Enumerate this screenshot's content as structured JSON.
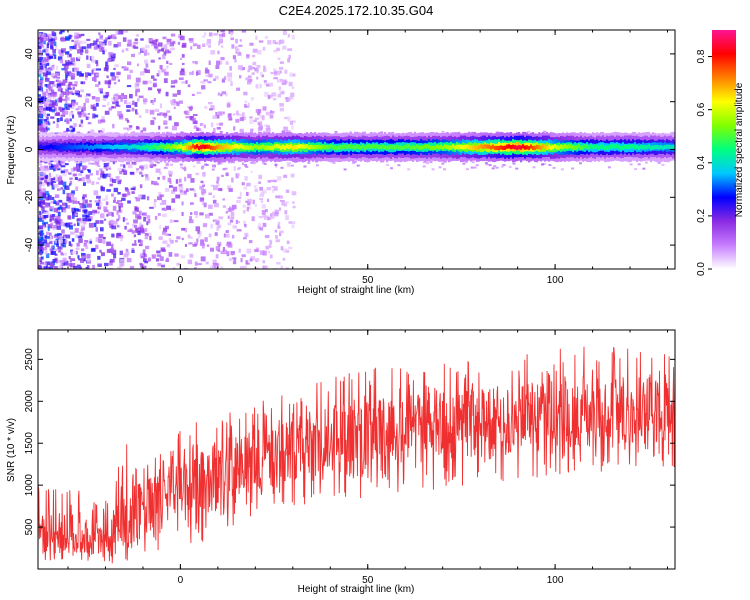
{
  "figure": {
    "title": "C2E4.2025.172.10.35.G04"
  },
  "chart_data": [
    {
      "type": "heatmap",
      "xlabel": "Height of straight line (km)",
      "ylabel": "Frequency (Hz)",
      "xlim": [
        -38,
        132
      ],
      "ylim": [
        -50,
        50
      ],
      "xticks": [
        0,
        50,
        100
      ],
      "yticks": [
        -40,
        -20,
        0,
        20,
        40
      ],
      "colorbar": {
        "label": "Normalized spectral amplitude",
        "range": [
          0,
          0.9
        ],
        "ticks": [
          0.0,
          0.2,
          0.4,
          0.6,
          0.8
        ],
        "colors": [
          "#ffffff",
          "#c77dff",
          "#8a2be2",
          "#0000ff",
          "#00c8ff",
          "#00ff80",
          "#80ff00",
          "#ffff00",
          "#ff8000",
          "#ff0000",
          "#ff1493"
        ]
      },
      "ridge": {
        "center_hz": 1,
        "points": [
          {
            "x": -38,
            "amp": 0.25
          },
          {
            "x": -30,
            "amp": 0.3
          },
          {
            "x": -20,
            "amp": 0.35
          },
          {
            "x": -12,
            "amp": 0.4
          },
          {
            "x": -5,
            "amp": 0.5
          },
          {
            "x": 0,
            "amp": 0.6
          },
          {
            "x": 5,
            "amp": 0.85
          },
          {
            "x": 10,
            "amp": 0.7
          },
          {
            "x": 20,
            "amp": 0.55
          },
          {
            "x": 30,
            "amp": 0.65
          },
          {
            "x": 40,
            "amp": 0.5
          },
          {
            "x": 50,
            "amp": 0.5
          },
          {
            "x": 60,
            "amp": 0.5
          },
          {
            "x": 70,
            "amp": 0.55
          },
          {
            "x": 80,
            "amp": 0.7
          },
          {
            "x": 90,
            "amp": 0.85
          },
          {
            "x": 100,
            "amp": 0.6
          },
          {
            "x": 110,
            "amp": 0.45
          },
          {
            "x": 120,
            "amp": 0.45
          },
          {
            "x": 132,
            "amp": 0.4
          }
        ]
      },
      "scatter_noise_regions": [
        {
          "x_range": [
            -38,
            20
          ],
          "amp_range": [
            0.05,
            0.4
          ]
        }
      ]
    },
    {
      "type": "line",
      "xlabel": "Height of straight line (km)",
      "ylabel": "SNR (10 * v/v)",
      "xlim": [
        -38,
        132
      ],
      "ylim": [
        0,
        2850
      ],
      "xticks": [
        0,
        50,
        100
      ],
      "yticks": [
        500,
        1000,
        1500,
        2000,
        2500
      ],
      "series": [
        {
          "color": "#f03030",
          "envelope": [
            {
              "x": -38,
              "low": 100,
              "mean": 450,
              "high": 1050
            },
            {
              "x": -30,
              "low": 80,
              "mean": 420,
              "high": 1000
            },
            {
              "x": -20,
              "low": 60,
              "mean": 350,
              "high": 800
            },
            {
              "x": -15,
              "low": 50,
              "mean": 600,
              "high": 1900
            },
            {
              "x": -10,
              "low": 100,
              "mean": 700,
              "high": 1300
            },
            {
              "x": -5,
              "low": 150,
              "mean": 850,
              "high": 1500
            },
            {
              "x": 0,
              "low": 250,
              "mean": 900,
              "high": 1650
            },
            {
              "x": 5,
              "low": 300,
              "mean": 1000,
              "high": 1800
            },
            {
              "x": 10,
              "low": 400,
              "mean": 1100,
              "high": 1900
            },
            {
              "x": 20,
              "low": 550,
              "mean": 1300,
              "high": 2000
            },
            {
              "x": 30,
              "low": 700,
              "mean": 1450,
              "high": 2150
            },
            {
              "x": 40,
              "low": 800,
              "mean": 1550,
              "high": 2300
            },
            {
              "x": 50,
              "low": 850,
              "mean": 1600,
              "high": 2400
            },
            {
              "x": 60,
              "low": 900,
              "mean": 1650,
              "high": 2400
            },
            {
              "x": 70,
              "low": 950,
              "mean": 1700,
              "high": 2450
            },
            {
              "x": 80,
              "low": 1000,
              "mean": 1750,
              "high": 2500
            },
            {
              "x": 90,
              "low": 1050,
              "mean": 1800,
              "high": 2550
            },
            {
              "x": 100,
              "low": 1100,
              "mean": 1850,
              "high": 2650
            },
            {
              "x": 110,
              "low": 1150,
              "mean": 1900,
              "high": 2700
            },
            {
              "x": 120,
              "low": 1150,
              "mean": 1900,
              "high": 2700
            },
            {
              "x": 132,
              "low": 1150,
              "mean": 1900,
              "high": 2600
            }
          ]
        }
      ]
    }
  ]
}
